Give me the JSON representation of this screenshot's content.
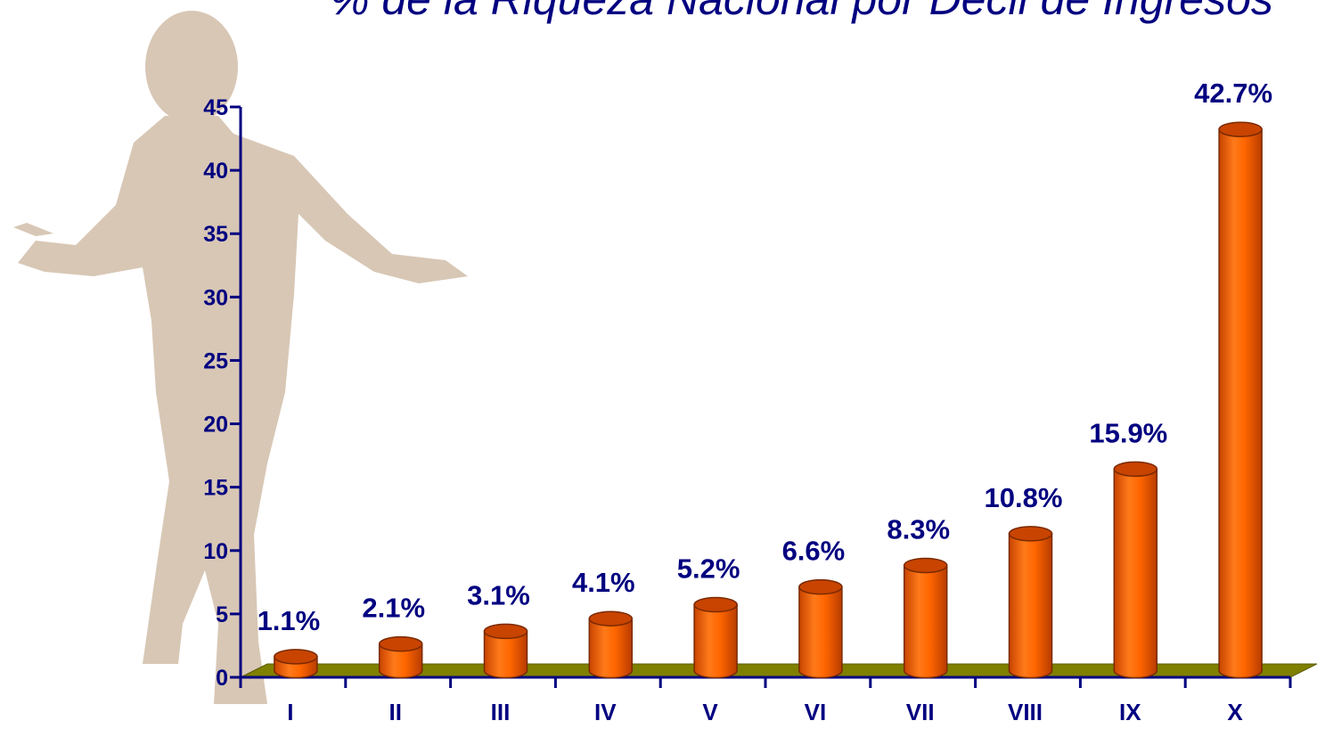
{
  "chart_data": {
    "type": "bar",
    "title": "% de la Riqueza Nacional por Decil de Ingresos",
    "xlabel": "",
    "ylabel": "",
    "categories": [
      "I",
      "II",
      "III",
      "IV",
      "V",
      "VI",
      "VII",
      "VIII",
      "IX",
      "X"
    ],
    "values": [
      1.1,
      2.1,
      3.1,
      4.1,
      5.2,
      6.6,
      8.3,
      10.8,
      15.9,
      42.7
    ],
    "data_labels": [
      "1.1%",
      "2.1%",
      "3.1%",
      "4.1%",
      "5.2%",
      "6.6%",
      "8.3%",
      "10.8%",
      "15.9%",
      "42.7%"
    ],
    "ylim": [
      0,
      45
    ],
    "yticks": [
      "0",
      "5",
      "10",
      "15",
      "20",
      "25",
      "30",
      "35",
      "40",
      "45"
    ],
    "grid": false,
    "legend": "none",
    "style": "3d-cylinder"
  },
  "colors": {
    "bar": "#ff6600",
    "bar_dark": "#c84400",
    "floor": "#808000",
    "axis": "#000080",
    "text": "#000080",
    "figure": "#d8c7b5"
  },
  "decoration": {
    "figure_icon": "standing-person-silhouette-icon"
  }
}
